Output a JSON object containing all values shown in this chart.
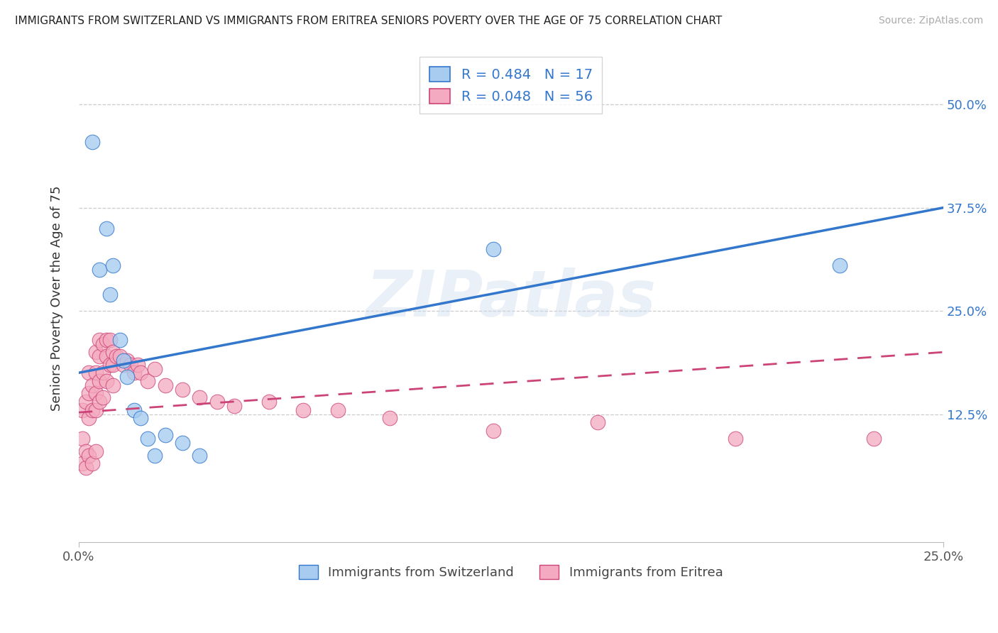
{
  "title": "IMMIGRANTS FROM SWITZERLAND VS IMMIGRANTS FROM ERITREA SENIORS POVERTY OVER THE AGE OF 75 CORRELATION CHART",
  "source": "Source: ZipAtlas.com",
  "ylabel": "Seniors Poverty Over the Age of 75",
  "ytick_values": [
    0.125,
    0.25,
    0.375,
    0.5
  ],
  "ytick_labels": [
    "12.5%",
    "25.0%",
    "37.5%",
    "50.0%"
  ],
  "xtick_values": [
    0.0,
    0.25
  ],
  "xtick_labels": [
    "0.0%",
    "25.0%"
  ],
  "xlim": [
    0.0,
    0.25
  ],
  "ylim": [
    -0.03,
    0.56
  ],
  "r_switzerland": 0.484,
  "n_switzerland": 17,
  "r_eritrea": 0.048,
  "n_eritrea": 56,
  "color_switzerland": "#a8ccf0",
  "color_eritrea": "#f4aac0",
  "line_switzerland": "#3377cc",
  "line_eritrea": "#cc4477",
  "watermark_text": "ZIPatlas",
  "legend_label_switzerland": "Immigrants from Switzerland",
  "legend_label_eritrea": "Immigrants from Eritrea",
  "swiss_x": [
    0.004,
    0.006,
    0.008,
    0.009,
    0.01,
    0.012,
    0.013,
    0.014,
    0.016,
    0.018,
    0.02,
    0.022,
    0.025,
    0.03,
    0.035,
    0.12,
    0.22
  ],
  "swiss_y": [
    0.455,
    0.3,
    0.35,
    0.27,
    0.305,
    0.215,
    0.19,
    0.17,
    0.13,
    0.12,
    0.095,
    0.075,
    0.1,
    0.09,
    0.075,
    0.325,
    0.305
  ],
  "eritrea_x": [
    0.001,
    0.001,
    0.001,
    0.002,
    0.002,
    0.002,
    0.003,
    0.003,
    0.003,
    0.003,
    0.004,
    0.004,
    0.004,
    0.005,
    0.005,
    0.005,
    0.005,
    0.005,
    0.006,
    0.006,
    0.006,
    0.006,
    0.007,
    0.007,
    0.007,
    0.008,
    0.008,
    0.008,
    0.009,
    0.009,
    0.01,
    0.01,
    0.01,
    0.011,
    0.012,
    0.013,
    0.014,
    0.015,
    0.016,
    0.017,
    0.018,
    0.02,
    0.022,
    0.025,
    0.03,
    0.035,
    0.04,
    0.045,
    0.055,
    0.065,
    0.075,
    0.09,
    0.12,
    0.15,
    0.19,
    0.23
  ],
  "eritrea_y": [
    0.13,
    0.095,
    0.065,
    0.14,
    0.08,
    0.06,
    0.175,
    0.15,
    0.12,
    0.075,
    0.16,
    0.13,
    0.065,
    0.2,
    0.175,
    0.15,
    0.13,
    0.08,
    0.215,
    0.195,
    0.165,
    0.14,
    0.21,
    0.175,
    0.145,
    0.215,
    0.195,
    0.165,
    0.215,
    0.185,
    0.2,
    0.185,
    0.16,
    0.195,
    0.195,
    0.185,
    0.19,
    0.185,
    0.175,
    0.185,
    0.175,
    0.165,
    0.18,
    0.16,
    0.155,
    0.145,
    0.14,
    0.135,
    0.14,
    0.13,
    0.13,
    0.12,
    0.105,
    0.115,
    0.095,
    0.095
  ],
  "trendline_swiss_x0": 0.0,
  "trendline_swiss_x1": 0.25,
  "trendline_swiss_y0": 0.175,
  "trendline_swiss_y1": 0.375,
  "trendline_eritrea_x0": 0.0,
  "trendline_eritrea_x1": 0.25,
  "trendline_eritrea_y0": 0.127,
  "trendline_eritrea_y1": 0.2
}
